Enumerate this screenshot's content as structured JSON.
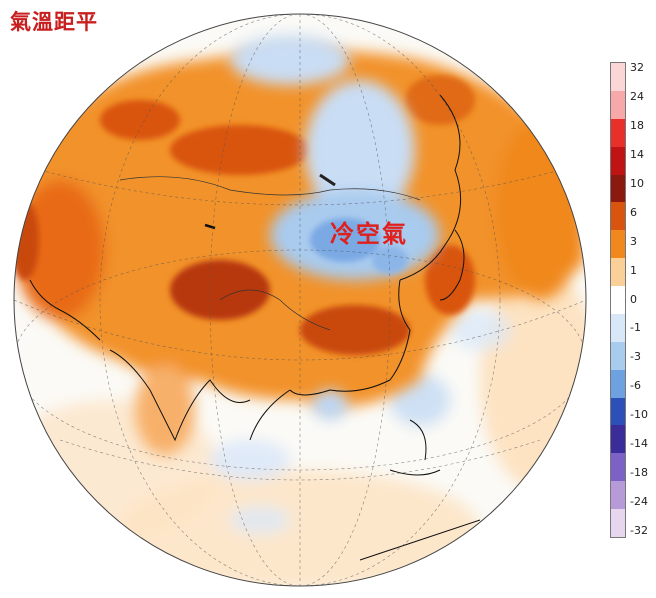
{
  "title": "氣溫距平",
  "annotation": "冷空氣",
  "colorbar": {
    "labels": [
      "32",
      "24",
      "18",
      "14",
      "10",
      "6",
      "3",
      "1",
      "0",
      "-1",
      "-3",
      "-6",
      "-10",
      "-14",
      "-18",
      "-24",
      "-32"
    ],
    "colors": [
      "#fbd6d6",
      "#f7a9a9",
      "#e8302a",
      "#c01414",
      "#8a1a10",
      "#d9540e",
      "#f0881e",
      "#fbcf98",
      "#ffffff",
      "#d8e8f8",
      "#a9cbee",
      "#6ea1e0",
      "#2c4fb8",
      "#3a2d9a",
      "#7d62c5",
      "#b79ad8",
      "#e6d6ee"
    ]
  },
  "map": {
    "projection": "orthographic",
    "region": "Asia",
    "palette": {
      "ocean_neutral": "#fbfaf6",
      "warm_light": "#fbcf98",
      "warm": "#f0881e",
      "warm_strong": "#d9540e",
      "warm_extreme": "#8a1a10",
      "cool_light": "#d8e8f8",
      "cool": "#a9cbee",
      "cool_strong": "#6ea1e0"
    }
  }
}
